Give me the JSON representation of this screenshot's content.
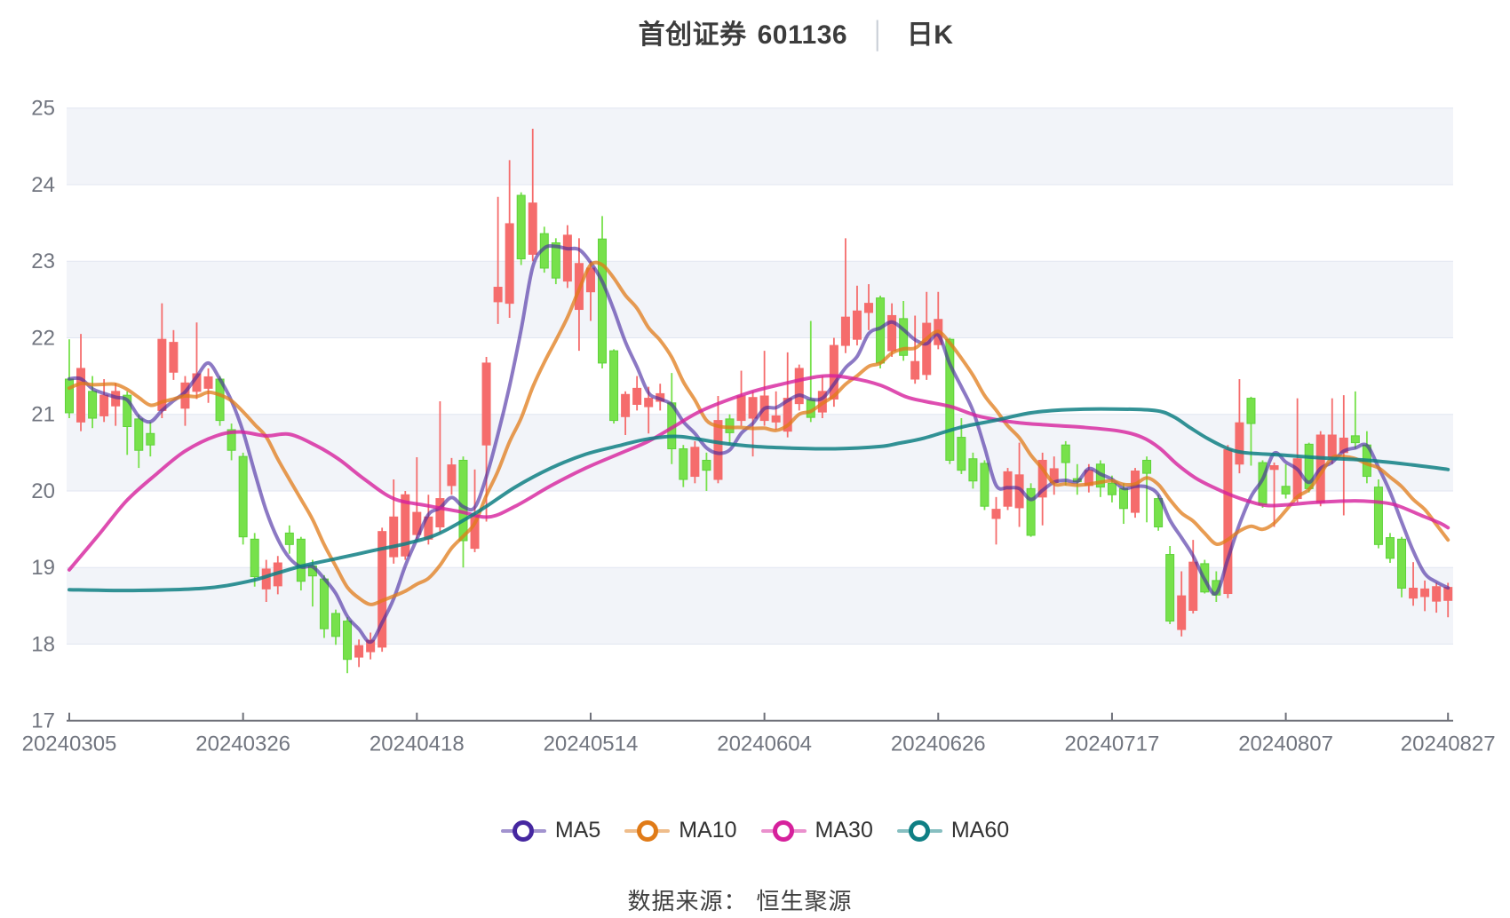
{
  "title": {
    "symbol_name": "首创证券",
    "symbol_code": "601136",
    "divider": "│",
    "period": "日K"
  },
  "legend": {
    "items": [
      {
        "label": "MA5",
        "color": "#4527a0"
      },
      {
        "label": "MA10",
        "color": "#e07b18"
      },
      {
        "label": "MA30",
        "color": "#d6219c"
      },
      {
        "label": "MA60",
        "color": "#0f7f84"
      }
    ]
  },
  "footer": {
    "label": "数据来源：",
    "source": "恒生聚源"
  },
  "chart_data": {
    "type": "candlestick",
    "title": "首创证券 601136 日K",
    "ylim": [
      17,
      25
    ],
    "y_ticks": [
      17,
      18,
      19,
      20,
      21,
      22,
      23,
      24,
      25
    ],
    "x_tick_labels": [
      "20240305",
      "20240326",
      "20240418",
      "20240514",
      "20240604",
      "20240626",
      "20240717",
      "20240807",
      "20240827"
    ],
    "x_tick_indices": [
      0,
      15,
      30,
      45,
      60,
      75,
      90,
      105,
      119
    ],
    "grid": {
      "band_fill": "#f2f4f9",
      "grid_line": "#e1e6f1",
      "axis_color": "#6E7079",
      "shaded_bands": [
        [
          25,
          24
        ],
        [
          23,
          22
        ],
        [
          21,
          20
        ],
        [
          19,
          18
        ]
      ]
    },
    "colors": {
      "up": "#f56c6c",
      "up_border": "#f56c6c",
      "down": "#77e14b",
      "down_border": "#5fd23a"
    },
    "candles_format": "[open, close, low, high] per trading day, 2024-03-05 .. 2024-08-27",
    "candles": [
      [
        21.46,
        21.02,
        20.95,
        21.98
      ],
      [
        20.9,
        21.6,
        20.78,
        22.05
      ],
      [
        21.3,
        20.95,
        20.82,
        21.5
      ],
      [
        20.98,
        21.25,
        20.9,
        21.46
      ],
      [
        21.11,
        21.3,
        20.85,
        21.41
      ],
      [
        21.25,
        20.84,
        20.47,
        21.3
      ],
      [
        20.94,
        20.53,
        20.3,
        21.0
      ],
      [
        20.75,
        20.6,
        20.45,
        20.9
      ],
      [
        21.05,
        21.98,
        20.95,
        22.45
      ],
      [
        21.55,
        21.94,
        21.45,
        22.1
      ],
      [
        21.08,
        21.41,
        20.85,
        21.5
      ],
      [
        21.3,
        21.53,
        21.2,
        22.2
      ],
      [
        21.34,
        21.49,
        21.15,
        21.6
      ],
      [
        21.46,
        20.92,
        20.85,
        21.5
      ],
      [
        20.8,
        20.53,
        20.4,
        20.88
      ],
      [
        20.45,
        19.4,
        19.3,
        20.5
      ],
      [
        19.37,
        18.88,
        18.75,
        19.45
      ],
      [
        18.72,
        18.98,
        18.55,
        19.1
      ],
      [
        18.76,
        19.06,
        18.65,
        19.15
      ],
      [
        19.45,
        19.3,
        19.18,
        19.55
      ],
      [
        19.37,
        18.82,
        18.7,
        19.4
      ],
      [
        19.02,
        18.89,
        18.49,
        19.1
      ],
      [
        18.85,
        18.2,
        18.08,
        18.9
      ],
      [
        18.4,
        18.1,
        17.99,
        18.45
      ],
      [
        18.3,
        17.8,
        17.62,
        18.35
      ],
      [
        17.83,
        17.98,
        17.7,
        18.06
      ],
      [
        17.9,
        18.05,
        17.8,
        18.15
      ],
      [
        17.96,
        19.47,
        17.9,
        19.52
      ],
      [
        19.14,
        19.66,
        19.05,
        20.15
      ],
      [
        19.15,
        19.95,
        19.1,
        20.0
      ],
      [
        19.43,
        19.72,
        19.35,
        20.44
      ],
      [
        19.37,
        19.66,
        19.3,
        19.95
      ],
      [
        19.53,
        19.9,
        19.45,
        21.17
      ],
      [
        20.07,
        20.34,
        19.95,
        20.43
      ],
      [
        20.4,
        19.35,
        19.0,
        20.45
      ],
      [
        19.25,
        19.68,
        19.2,
        20.28
      ],
      [
        20.6,
        21.67,
        19.6,
        21.75
      ],
      [
        22.47,
        22.66,
        22.18,
        23.84
      ],
      [
        22.45,
        23.49,
        22.26,
        24.32
      ],
      [
        23.86,
        23.03,
        22.95,
        23.9
      ],
      [
        23.09,
        23.76,
        23.0,
        24.73
      ],
      [
        23.36,
        22.91,
        22.85,
        23.45
      ],
      [
        23.24,
        22.78,
        22.7,
        23.3
      ],
      [
        22.74,
        23.34,
        22.65,
        23.47
      ],
      [
        22.37,
        22.97,
        21.83,
        23.3
      ],
      [
        22.6,
        22.91,
        22.22,
        23.0
      ],
      [
        23.29,
        21.67,
        21.6,
        23.59
      ],
      [
        21.83,
        20.92,
        20.88,
        21.85
      ],
      [
        20.97,
        21.26,
        20.73,
        21.3
      ],
      [
        21.13,
        21.34,
        21.05,
        21.5
      ],
      [
        21.1,
        21.21,
        20.75,
        21.36
      ],
      [
        21.17,
        21.27,
        21.05,
        21.4
      ],
      [
        21.15,
        20.55,
        20.35,
        21.54
      ],
      [
        20.55,
        20.15,
        20.05,
        20.6
      ],
      [
        20.19,
        20.57,
        20.1,
        20.65
      ],
      [
        20.4,
        20.27,
        20.0,
        20.5
      ],
      [
        20.15,
        20.92,
        20.1,
        21.24
      ],
      [
        20.94,
        20.76,
        20.6,
        21.0
      ],
      [
        20.92,
        21.24,
        20.85,
        21.57
      ],
      [
        20.95,
        21.22,
        20.45,
        21.3
      ],
      [
        20.92,
        21.24,
        20.85,
        21.83
      ],
      [
        20.9,
        20.98,
        20.8,
        21.3
      ],
      [
        20.78,
        21.21,
        20.7,
        21.81
      ],
      [
        21.14,
        21.6,
        21.05,
        21.65
      ],
      [
        21.19,
        20.96,
        20.9,
        22.22
      ],
      [
        21.03,
        21.3,
        20.95,
        21.5
      ],
      [
        21.2,
        21.9,
        21.1,
        22.0
      ],
      [
        21.9,
        22.27,
        21.8,
        23.3
      ],
      [
        21.98,
        22.35,
        21.9,
        22.68
      ],
      [
        22.33,
        22.45,
        22.1,
        22.7
      ],
      [
        22.52,
        21.67,
        21.6,
        22.55
      ],
      [
        21.83,
        22.29,
        21.75,
        22.45
      ],
      [
        22.25,
        21.77,
        21.7,
        22.48
      ],
      [
        21.46,
        21.69,
        21.4,
        22.29
      ],
      [
        21.52,
        22.19,
        21.45,
        22.6
      ],
      [
        21.91,
        22.24,
        21.85,
        22.6
      ],
      [
        21.98,
        20.4,
        20.35,
        22.0
      ],
      [
        20.7,
        20.27,
        20.22,
        20.95
      ],
      [
        20.42,
        20.13,
        20.03,
        20.5
      ],
      [
        20.36,
        19.8,
        19.75,
        20.4
      ],
      [
        19.64,
        19.76,
        19.3,
        19.92
      ],
      [
        19.8,
        20.25,
        19.75,
        20.3
      ],
      [
        19.78,
        20.21,
        19.53,
        20.63
      ],
      [
        20.03,
        19.42,
        19.4,
        20.1
      ],
      [
        19.92,
        20.4,
        19.55,
        20.5
      ],
      [
        20.11,
        20.29,
        19.95,
        20.45
      ],
      [
        20.6,
        20.37,
        20.07,
        20.65
      ],
      [
        20.16,
        20.12,
        19.95,
        20.35
      ],
      [
        20.07,
        20.27,
        19.98,
        20.35
      ],
      [
        20.35,
        20.05,
        19.92,
        20.4
      ],
      [
        20.1,
        19.95,
        19.85,
        20.2
      ],
      [
        20.03,
        19.77,
        19.57,
        20.1
      ],
      [
        19.72,
        20.26,
        19.65,
        20.3
      ],
      [
        20.4,
        20.23,
        19.59,
        20.45
      ],
      [
        19.9,
        19.53,
        19.48,
        19.95
      ],
      [
        19.17,
        18.3,
        18.26,
        19.28
      ],
      [
        18.19,
        18.63,
        18.1,
        18.95
      ],
      [
        18.44,
        19.07,
        18.4,
        19.36
      ],
      [
        19.05,
        18.68,
        18.66,
        19.1
      ],
      [
        18.83,
        18.64,
        18.55,
        18.95
      ],
      [
        18.66,
        20.54,
        18.6,
        20.6
      ],
      [
        20.35,
        20.89,
        20.23,
        21.46
      ],
      [
        21.21,
        20.88,
        20.33,
        21.23
      ],
      [
        20.37,
        19.82,
        19.78,
        20.4
      ],
      [
        20.28,
        20.33,
        19.53,
        20.37
      ],
      [
        20.06,
        19.96,
        19.9,
        20.35
      ],
      [
        19.9,
        20.42,
        19.85,
        21.21
      ],
      [
        20.61,
        20.03,
        19.98,
        20.63
      ],
      [
        19.85,
        20.73,
        19.8,
        20.78
      ],
      [
        20.44,
        20.73,
        20.35,
        21.21
      ],
      [
        20.5,
        20.69,
        19.68,
        21.25
      ],
      [
        20.72,
        20.63,
        20.55,
        21.3
      ],
      [
        20.6,
        20.19,
        20.1,
        20.78
      ],
      [
        20.05,
        19.3,
        19.25,
        20.15
      ],
      [
        19.39,
        19.12,
        19.06,
        19.45
      ],
      [
        19.37,
        18.73,
        18.61,
        19.4
      ],
      [
        18.6,
        18.73,
        18.5,
        19.07
      ],
      [
        18.62,
        18.72,
        18.43,
        18.83
      ],
      [
        18.56,
        18.75,
        18.41,
        18.8
      ],
      [
        18.57,
        18.74,
        18.35,
        18.8
      ]
    ],
    "ma_series": [
      {
        "name": "MA5",
        "color": "#4527a0",
        "opacity": 0.62,
        "window": 5,
        "seed_closes": [
          20.9,
          21.0,
          21.1,
          21.2,
          21.3,
          21.5,
          21.6,
          21.6,
          21.55,
          21.55
        ]
      },
      {
        "name": "MA10",
        "color": "#e07b18",
        "opacity": 0.75,
        "window": 10,
        "seed_closes": [
          20.9,
          21.0,
          21.1,
          21.2,
          21.3,
          21.5,
          21.6,
          21.6,
          21.55,
          21.55
        ]
      },
      {
        "name": "MA30",
        "color": "#d6219c",
        "opacity": 0.8,
        "points": [
          [
            0,
            18.97
          ],
          [
            2.5,
            19.42
          ],
          [
            5,
            19.88
          ],
          [
            7.6,
            20.23
          ],
          [
            10,
            20.52
          ],
          [
            12.7,
            20.72
          ],
          [
            14.7,
            20.77
          ],
          [
            17,
            20.72
          ],
          [
            19,
            20.74
          ],
          [
            21.2,
            20.6
          ],
          [
            23.2,
            20.42
          ],
          [
            25.5,
            20.15
          ],
          [
            28,
            19.9
          ],
          [
            30.8,
            19.81
          ],
          [
            33.7,
            19.73
          ],
          [
            36.2,
            19.66
          ],
          [
            38.5,
            19.8
          ],
          [
            41.6,
            20.07
          ],
          [
            44.6,
            20.3
          ],
          [
            47.7,
            20.5
          ],
          [
            50,
            20.65
          ],
          [
            52.3,
            20.85
          ],
          [
            54.6,
            21.05
          ],
          [
            58.4,
            21.27
          ],
          [
            61.1,
            21.38
          ],
          [
            65,
            21.5
          ],
          [
            67.6,
            21.47
          ],
          [
            70,
            21.38
          ],
          [
            72.2,
            21.23
          ],
          [
            73.8,
            21.17
          ],
          [
            76.1,
            21.1
          ],
          [
            78.4,
            20.98
          ],
          [
            81.4,
            20.9
          ],
          [
            84.5,
            20.86
          ],
          [
            87.6,
            20.83
          ],
          [
            90.7,
            20.78
          ],
          [
            92.6,
            20.7
          ],
          [
            94.1,
            20.56
          ],
          [
            95.6,
            20.35
          ],
          [
            97.2,
            20.17
          ],
          [
            98.7,
            20.05
          ],
          [
            100.2,
            19.95
          ],
          [
            101.7,
            19.87
          ],
          [
            103.3,
            19.81
          ],
          [
            105.2,
            19.82
          ],
          [
            107.5,
            19.85
          ],
          [
            110.6,
            19.87
          ],
          [
            112.5,
            19.86
          ],
          [
            114.4,
            19.82
          ],
          [
            116.7,
            19.68
          ],
          [
            118.3,
            19.58
          ],
          [
            119,
            19.52
          ]
        ]
      },
      {
        "name": "MA60",
        "color": "#0f7f84",
        "opacity": 0.85,
        "points": [
          [
            0,
            18.71
          ],
          [
            5.5,
            18.7
          ],
          [
            11.7,
            18.73
          ],
          [
            15.5,
            18.82
          ],
          [
            17.8,
            18.92
          ],
          [
            20.1,
            19.02
          ],
          [
            23.2,
            19.12
          ],
          [
            26.2,
            19.22
          ],
          [
            29.3,
            19.32
          ],
          [
            32,
            19.45
          ],
          [
            35.5,
            19.75
          ],
          [
            38.5,
            20.05
          ],
          [
            41.6,
            20.3
          ],
          [
            44.6,
            20.48
          ],
          [
            47.7,
            20.6
          ],
          [
            50,
            20.68
          ],
          [
            52.7,
            20.71
          ],
          [
            56.1,
            20.63
          ],
          [
            59.2,
            20.58
          ],
          [
            62.3,
            20.56
          ],
          [
            66.1,
            20.55
          ],
          [
            70,
            20.58
          ],
          [
            71.5,
            20.62
          ],
          [
            73.8,
            20.69
          ],
          [
            76.9,
            20.83
          ],
          [
            79.9,
            20.92
          ],
          [
            83,
            21.02
          ],
          [
            86.1,
            21.06
          ],
          [
            89.9,
            21.07
          ],
          [
            93.7,
            21.05
          ],
          [
            95.3,
            20.97
          ],
          [
            96.8,
            20.82
          ],
          [
            98.3,
            20.68
          ],
          [
            99.9,
            20.56
          ],
          [
            101.4,
            20.5
          ],
          [
            104.5,
            20.47
          ],
          [
            108.3,
            20.43
          ],
          [
            112.1,
            20.4
          ],
          [
            115.9,
            20.34
          ],
          [
            119,
            20.28
          ]
        ]
      }
    ]
  }
}
